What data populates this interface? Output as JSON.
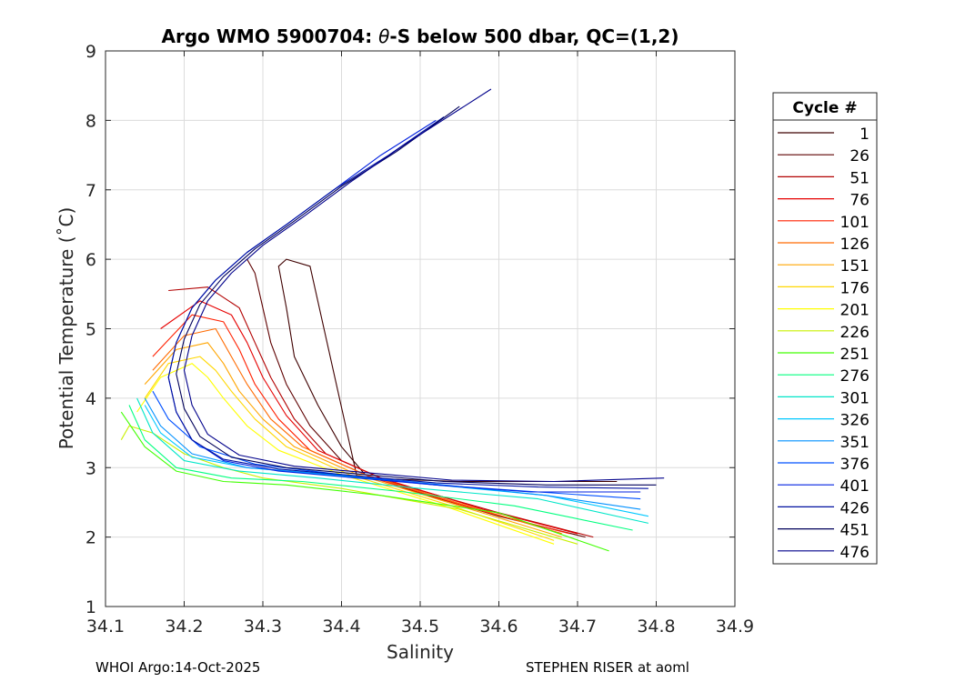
{
  "chart_data": {
    "type": "line",
    "title": "Argo WMO 5900704: θ-S below 500 dbar,  QC=(1,2)",
    "title_prefix": "Argo WMO 5900704: ",
    "title_symbol": "θ",
    "title_suffix": "-S below 500 dbar,  QC=(1,2)",
    "xlabel": "Salinity",
    "ylabel": "Potential Temperature (˚C)",
    "xlim": [
      34.1,
      34.9
    ],
    "ylim": [
      1,
      9
    ],
    "xticks": [
      34.1,
      34.2,
      34.3,
      34.4,
      34.5,
      34.6,
      34.7,
      34.8,
      34.9
    ],
    "xtick_labels": [
      "34.1",
      "34.2",
      "34.3",
      "34.4",
      "34.5",
      "34.6",
      "34.7",
      "34.8",
      "34.9"
    ],
    "yticks": [
      1,
      2,
      3,
      4,
      5,
      6,
      7,
      8,
      9
    ],
    "ytick_labels": [
      "1",
      "2",
      "3",
      "4",
      "5",
      "6",
      "7",
      "8",
      "9"
    ],
    "grid": true,
    "legend_title": "Cycle #",
    "legend_position": "outside-right",
    "series": [
      {
        "name": "1",
        "color": "#3f0000",
        "s": [
          34.43,
          34.4,
          34.37,
          34.34,
          34.33,
          34.32,
          34.33,
          34.36,
          34.42,
          34.55,
          34.75
        ],
        "t": [
          2.9,
          3.3,
          3.9,
          4.6,
          5.3,
          5.9,
          6.0,
          5.9,
          2.85,
          2.8,
          2.8
        ]
      },
      {
        "name": "26",
        "color": "#5e0000",
        "s": [
          34.71,
          34.6,
          34.48,
          34.4,
          34.36,
          34.33,
          34.31,
          34.3,
          34.29,
          34.28
        ],
        "t": [
          2.0,
          2.3,
          2.7,
          3.1,
          3.6,
          4.2,
          4.8,
          5.3,
          5.8,
          6.0
        ]
      },
      {
        "name": "51",
        "color": "#b20000",
        "s": [
          34.72,
          34.6,
          34.46,
          34.38,
          34.34,
          34.31,
          34.29,
          34.27,
          34.23,
          34.18
        ],
        "t": [
          2.0,
          2.35,
          2.8,
          3.2,
          3.7,
          4.3,
          4.8,
          5.3,
          5.6,
          5.55
        ]
      },
      {
        "name": "76",
        "color": "#e60000",
        "s": [
          34.7,
          34.58,
          34.45,
          34.37,
          34.33,
          34.3,
          34.28,
          34.26,
          34.22,
          34.17
        ],
        "t": [
          2.05,
          2.4,
          2.85,
          3.25,
          3.75,
          4.3,
          4.8,
          5.2,
          5.4,
          5.0
        ]
      },
      {
        "name": "101",
        "color": "#ff2000",
        "s": [
          34.69,
          34.57,
          34.44,
          34.36,
          34.32,
          34.29,
          34.27,
          34.25,
          34.21,
          34.16
        ],
        "t": [
          2.05,
          2.4,
          2.85,
          3.25,
          3.7,
          4.2,
          4.7,
          5.1,
          5.2,
          4.6
        ]
      },
      {
        "name": "126",
        "color": "#ff6a00",
        "s": [
          34.68,
          34.56,
          34.43,
          34.35,
          34.31,
          34.28,
          34.26,
          34.24,
          34.2,
          34.16
        ],
        "t": [
          2.05,
          2.45,
          2.9,
          3.3,
          3.7,
          4.2,
          4.6,
          5.0,
          4.9,
          4.4
        ]
      },
      {
        "name": "151",
        "color": "#ffa500",
        "s": [
          34.68,
          34.55,
          34.42,
          34.34,
          34.3,
          34.27,
          34.25,
          34.23,
          34.19,
          34.15
        ],
        "t": [
          2.0,
          2.45,
          2.9,
          3.3,
          3.7,
          4.1,
          4.5,
          4.8,
          4.7,
          4.2
        ]
      },
      {
        "name": "176",
        "color": "#ffd700",
        "s": [
          34.67,
          34.54,
          34.41,
          34.33,
          34.29,
          34.26,
          34.24,
          34.22,
          34.18,
          34.15
        ],
        "t": [
          1.95,
          2.45,
          2.9,
          3.3,
          3.7,
          4.1,
          4.4,
          4.6,
          4.5,
          4.0
        ]
      },
      {
        "name": "201",
        "color": "#ffff00",
        "s": [
          34.67,
          34.53,
          34.4,
          34.32,
          34.28,
          34.25,
          34.23,
          34.21,
          34.17,
          34.14
        ],
        "t": [
          1.9,
          2.45,
          2.9,
          3.25,
          3.6,
          4.0,
          4.3,
          4.5,
          4.3,
          3.8
        ]
      },
      {
        "name": "226",
        "color": "#c8f000",
        "s": [
          34.7,
          34.55,
          34.4,
          34.3,
          34.25,
          34.2,
          34.16,
          34.13,
          34.12
        ],
        "t": [
          1.9,
          2.4,
          2.7,
          2.85,
          3.0,
          3.2,
          3.5,
          3.6,
          3.4
        ]
      },
      {
        "name": "251",
        "color": "#40ff00",
        "s": [
          34.74,
          34.6,
          34.45,
          34.33,
          34.25,
          34.19,
          34.15,
          34.12
        ],
        "t": [
          1.8,
          2.35,
          2.6,
          2.75,
          2.8,
          2.95,
          3.3,
          3.8
        ]
      },
      {
        "name": "276",
        "color": "#00ff7f",
        "s": [
          34.77,
          34.62,
          34.48,
          34.35,
          34.26,
          34.19,
          34.15,
          34.13
        ],
        "t": [
          2.1,
          2.45,
          2.65,
          2.8,
          2.85,
          3.0,
          3.4,
          3.9
        ]
      },
      {
        "name": "301",
        "color": "#00e6c8",
        "s": [
          34.79,
          34.65,
          34.5,
          34.37,
          34.27,
          34.2,
          34.16,
          34.14
        ],
        "t": [
          2.2,
          2.55,
          2.7,
          2.85,
          2.95,
          3.1,
          3.5,
          4.0
        ]
      },
      {
        "name": "326",
        "color": "#00c8ff",
        "s": [
          34.79,
          34.66,
          34.52,
          34.38,
          34.28,
          34.21,
          34.17,
          34.15
        ],
        "t": [
          2.3,
          2.6,
          2.75,
          2.9,
          3.0,
          3.15,
          3.5,
          3.9
        ]
      },
      {
        "name": "351",
        "color": "#0090ff",
        "s": [
          34.78,
          34.66,
          34.53,
          34.39,
          34.28,
          34.21,
          34.17,
          34.15
        ],
        "t": [
          2.4,
          2.6,
          2.75,
          2.9,
          3.0,
          3.2,
          3.6,
          4.0
        ]
      },
      {
        "name": "376",
        "color": "#0050ff",
        "s": [
          34.78,
          34.65,
          34.52,
          34.4,
          34.29,
          34.22,
          34.18,
          34.16
        ],
        "t": [
          2.55,
          2.65,
          2.75,
          2.9,
          3.05,
          3.3,
          3.7,
          4.1
        ]
      },
      {
        "name": "401",
        "color": "#0020e0",
        "s": [
          34.78,
          34.64,
          34.52,
          34.42,
          34.32,
          34.25,
          34.21,
          34.19,
          34.18,
          34.19,
          34.21,
          34.24,
          34.28,
          34.33,
          34.39,
          34.45,
          34.52
        ],
        "t": [
          2.65,
          2.65,
          2.75,
          2.85,
          2.95,
          3.1,
          3.4,
          3.8,
          4.3,
          4.8,
          5.3,
          5.7,
          6.1,
          6.5,
          7.0,
          7.5,
          8.0
        ]
      },
      {
        "name": "426",
        "color": "#0010a0",
        "s": [
          34.79,
          34.65,
          34.52,
          34.42,
          34.32,
          34.25,
          34.21,
          34.19,
          34.18,
          34.19,
          34.21,
          34.24,
          34.28,
          34.33,
          34.39,
          34.46,
          34.53
        ],
        "t": [
          2.7,
          2.72,
          2.78,
          2.88,
          2.98,
          3.12,
          3.4,
          3.8,
          4.3,
          4.8,
          5.3,
          5.7,
          6.1,
          6.5,
          7.0,
          7.5,
          8.05
        ]
      },
      {
        "name": "451",
        "color": "#00005a",
        "s": [
          34.8,
          34.66,
          34.53,
          34.43,
          34.33,
          34.26,
          34.22,
          34.2,
          34.19,
          34.2,
          34.22,
          34.25,
          34.29,
          34.34,
          34.4,
          34.47,
          34.55
        ],
        "t": [
          2.75,
          2.75,
          2.8,
          2.9,
          3.0,
          3.15,
          3.45,
          3.85,
          4.35,
          4.85,
          5.35,
          5.75,
          6.15,
          6.55,
          7.05,
          7.55,
          8.2
        ]
      },
      {
        "name": "476",
        "color": "#00008b",
        "s": [
          34.81,
          34.67,
          34.54,
          34.44,
          34.34,
          34.27,
          34.23,
          34.21,
          34.2,
          34.21,
          34.23,
          34.26,
          34.3,
          34.35,
          34.41,
          34.48,
          34.59
        ],
        "t": [
          2.85,
          2.8,
          2.82,
          2.92,
          3.02,
          3.18,
          3.48,
          3.9,
          4.4,
          4.9,
          5.4,
          5.8,
          6.2,
          6.6,
          7.1,
          7.65,
          8.45
        ]
      }
    ]
  },
  "footer": {
    "left": "WHOI Argo:14-Oct-2025",
    "right": "STEPHEN RISER at aoml"
  }
}
